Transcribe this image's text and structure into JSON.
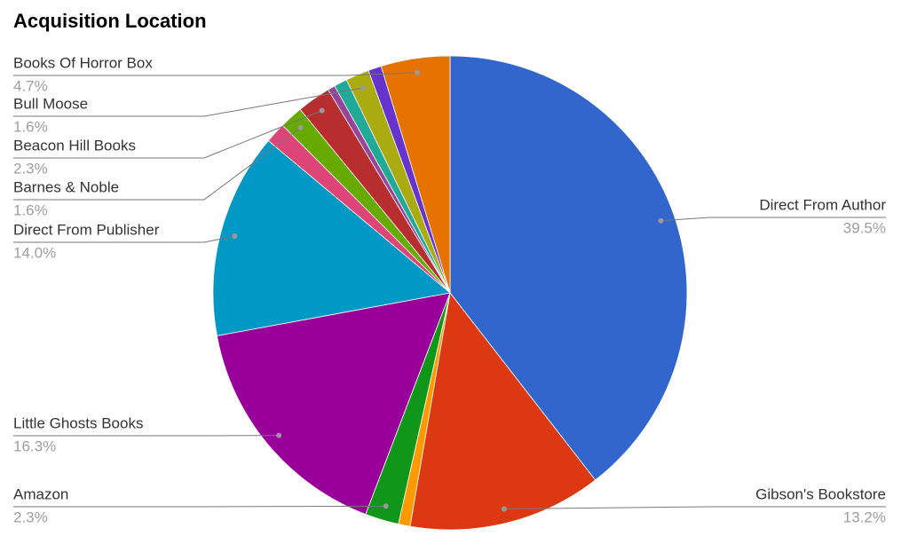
{
  "chart_data": {
    "type": "pie",
    "title": "Acquisition Location",
    "categories": [
      "Direct From Author",
      "Gibson's Bookstore",
      null,
      "Amazon",
      "Little Ghosts Books",
      "Direct From Publisher",
      null,
      "Barnes & Noble",
      "Beacon Hill Books",
      null,
      null,
      "Bull Moose",
      null,
      "Books Of Horror Box"
    ],
    "values": [
      39.5,
      13.2,
      0.8,
      2.3,
      16.3,
      14.0,
      1.4,
      1.6,
      2.3,
      0.5,
      0.9,
      1.6,
      0.9,
      4.7
    ],
    "value_labels": [
      "39.5%",
      "13.2%",
      null,
      "2.3%",
      "16.3%",
      "14.0%",
      null,
      "1.6%",
      "2.3%",
      null,
      null,
      "1.6%",
      null,
      "4.7%"
    ],
    "colors": [
      "#3366cc",
      "#dc3912",
      "#ff9900",
      "#109618",
      "#990099",
      "#0099c6",
      "#dd4477",
      "#66aa00",
      "#b82e2e",
      "#994499",
      "#22aa99",
      "#aaaa11",
      "#6633cc",
      "#e67300"
    ]
  }
}
